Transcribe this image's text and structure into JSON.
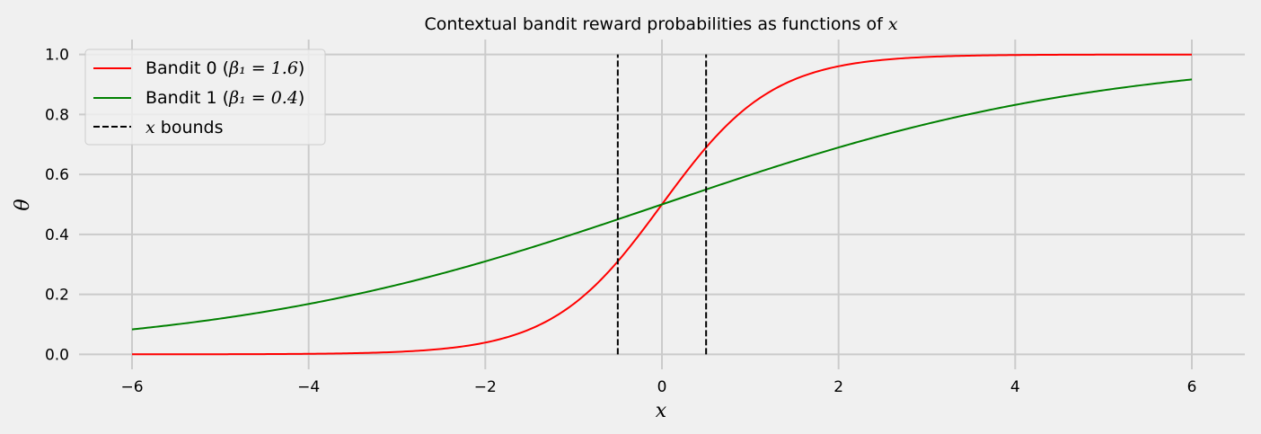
{
  "chart_data": {
    "type": "line",
    "title_prefix": "Contextual bandit reward probabilities as functions of ",
    "title_var": "x",
    "xlabel": "x",
    "ylabel": "θ",
    "xlim": [
      -6.6,
      6.6
    ],
    "ylim": [
      -0.05,
      1.05
    ],
    "xticks": [
      -6,
      -4,
      -2,
      0,
      2,
      4,
      6
    ],
    "xtick_labels": [
      "−6",
      "−4",
      "−2",
      "0",
      "2",
      "4",
      "6"
    ],
    "yticks": [
      0.0,
      0.2,
      0.4,
      0.6,
      0.8,
      1.0
    ],
    "ytick_labels": [
      "0.0",
      "0.2",
      "0.4",
      "0.6",
      "0.8",
      "1.0"
    ],
    "grid": true,
    "legend_position": "top-left",
    "x_domain": [
      -6,
      6
    ],
    "series": [
      {
        "name": "Bandit 0 (β₁ = 1.6)",
        "legend_prefix": "Bandit 0 (",
        "legend_math": "β₁ = 1.6",
        "legend_suffix": ")",
        "color": "#ff0000",
        "function": "sigmoid",
        "beta1": 1.6,
        "x": [
          -6,
          -4,
          -3,
          -2,
          -1,
          -0.5,
          0,
          0.5,
          1,
          2,
          3,
          4,
          6
        ],
        "y": [
          0.0001,
          0.0017,
          0.008,
          0.039,
          0.168,
          0.31,
          0.5,
          0.69,
          0.832,
          0.961,
          0.992,
          0.998,
          1.0
        ]
      },
      {
        "name": "Bandit 1 (β₁ = 0.4)",
        "legend_prefix": "Bandit 1 (",
        "legend_math": "β₁ = 0.4",
        "legend_suffix": ")",
        "color": "#008000",
        "function": "sigmoid",
        "beta1": 0.4,
        "x": [
          -6,
          -4,
          -2,
          -0.5,
          0,
          0.5,
          2,
          4,
          6
        ],
        "y": [
          0.083,
          0.168,
          0.31,
          0.45,
          0.5,
          0.55,
          0.69,
          0.832,
          0.917
        ]
      }
    ],
    "bounds": {
      "legend_var": "x",
      "legend_suffix": " bounds",
      "color": "#000000",
      "x": [
        -0.5,
        0.5
      ],
      "y_range": [
        0,
        1
      ]
    }
  }
}
